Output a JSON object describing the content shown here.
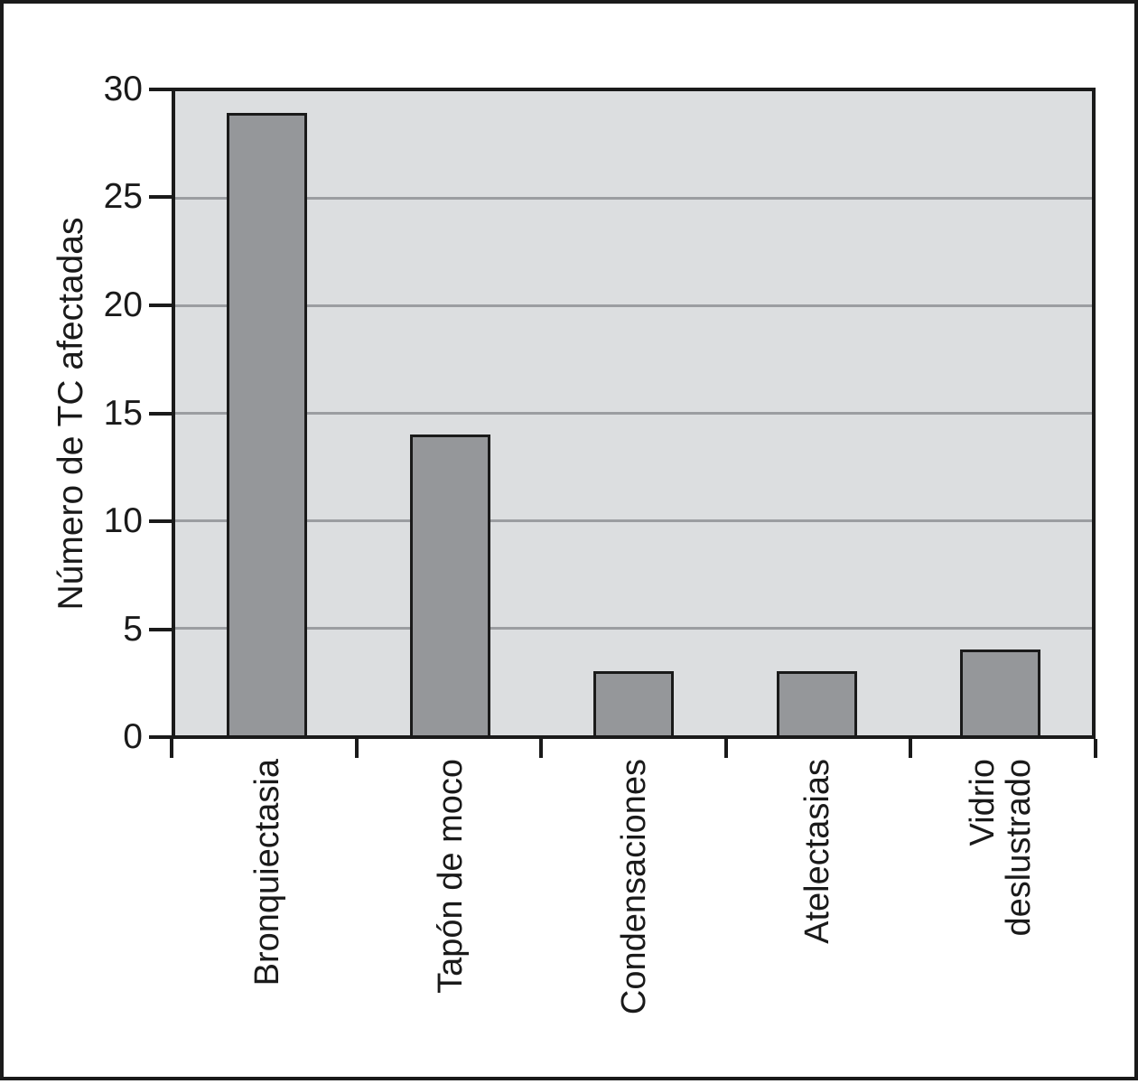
{
  "chart_data": {
    "type": "bar",
    "title": "",
    "xlabel": "",
    "ylabel": "Número de TC afectadas",
    "categories": [
      "Bronquiectasia",
      "Tapón de moco",
      "Condensaciones",
      "Atelectasias",
      "Vidrio\ndeslustrado"
    ],
    "values": [
      29,
      14,
      3,
      3,
      4
    ],
    "ylim": [
      0,
      30
    ],
    "yticks": [
      0,
      5,
      10,
      15,
      20,
      25,
      30
    ],
    "grid": "horizontal-only",
    "legend": "none",
    "layout": {
      "bar_width_ratio": 0.44,
      "x_labels_rotation_deg": 90,
      "y_label_rotation_deg": 90
    },
    "colors": {
      "figure_background": "#ffffff",
      "figure_border": "#1a1a1a",
      "plot_background": "#dcdee0",
      "bar_fill": "#95979a",
      "bar_border": "#1a1a1a",
      "gridline": "#9b9da1",
      "axis": "#1a1a1a",
      "text": "#1a1a1a"
    }
  }
}
